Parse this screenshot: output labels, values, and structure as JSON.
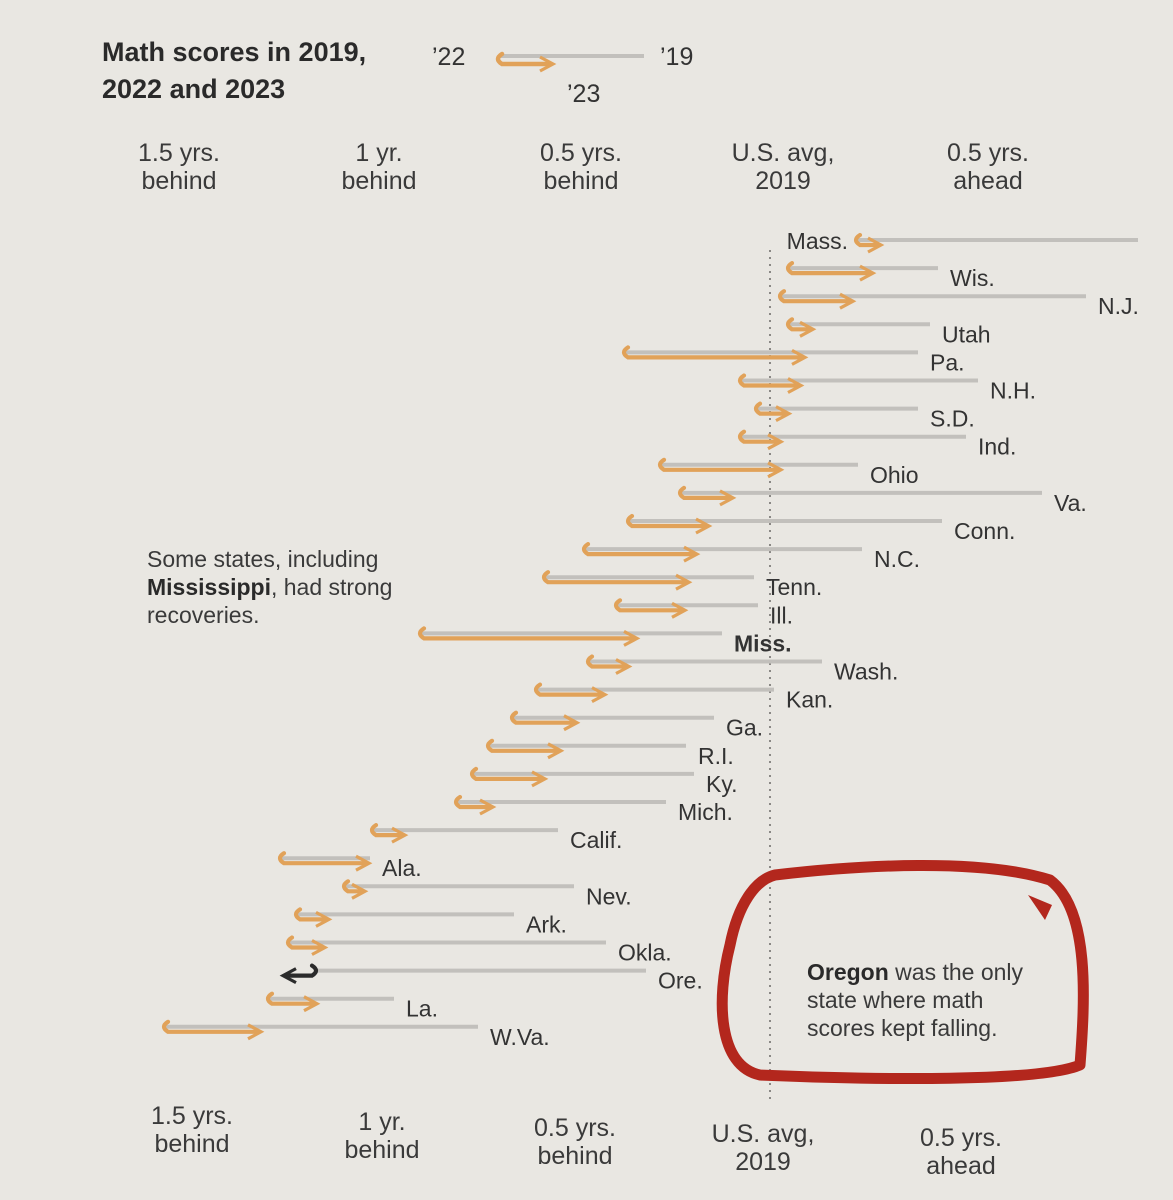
{
  "title_line1": "Math scores in 2019,",
  "title_line2": "2022 and 2023",
  "legend": {
    "label_2022": "’22",
    "label_2019": "’19",
    "label_2023": "’23"
  },
  "colors": {
    "orange": "#e1a259",
    "gray": "#c2c0bc",
    "annotation_circle": "#b3271d",
    "oregon_arrow": "#2b2b2b"
  },
  "top_axis": [
    {
      "line1": "1.5 yrs.",
      "line2": "behind"
    },
    {
      "line1": "1 yr.",
      "line2": "behind"
    },
    {
      "line1": "0.5 yrs.",
      "line2": "behind"
    },
    {
      "line1": "U.S. avg,",
      "line2": "2019"
    },
    {
      "line1": "0.5 yrs.",
      "line2": "ahead"
    }
  ],
  "bottom_axis": [
    {
      "line1": "1.5 yrs.",
      "line2": "behind"
    },
    {
      "line1": "1 yr.",
      "line2": "behind"
    },
    {
      "line1": "0.5 yrs.",
      "line2": "behind"
    },
    {
      "line1": "U.S. avg,",
      "line2": "2019"
    },
    {
      "line1": "0.5 yrs.",
      "line2": "ahead"
    }
  ],
  "note_mississippi": {
    "pre": "Some states, including",
    "bold": "Mississippi",
    "post": ", had strong",
    "last": "recoveries."
  },
  "note_oregon": {
    "bold": "Oregon",
    "rest1": " was the only",
    "line2": "state where math",
    "line3": "scores kept falling."
  },
  "chart_data": {
    "type": "arrow-range",
    "unit": "years relative to U.S. average 2019",
    "x_range": [
      -1.5,
      0.95
    ],
    "series": [
      {
        "name": "’19"
      },
      {
        "name": "’22"
      },
      {
        "name": "’23"
      }
    ],
    "states": [
      {
        "name": "Mass.",
        "y2019": 0.92,
        "y2022": 0.22,
        "y2023": 0.27,
        "label_side": "left"
      },
      {
        "name": "Wis.",
        "y2019": 0.42,
        "y2022": 0.05,
        "y2023": 0.25,
        "label_side": "right"
      },
      {
        "name": "N.J.",
        "y2019": 0.79,
        "y2022": 0.03,
        "y2023": 0.2,
        "label_side": "right"
      },
      {
        "name": "Utah",
        "y2019": 0.4,
        "y2022": 0.05,
        "y2023": 0.1,
        "label_side": "right"
      },
      {
        "name": "Pa.",
        "y2019": 0.37,
        "y2022": -0.36,
        "y2023": 0.08,
        "label_side": "right"
      },
      {
        "name": "N.H.",
        "y2019": 0.52,
        "y2022": -0.07,
        "y2023": 0.07,
        "label_side": "right"
      },
      {
        "name": "S.D.",
        "y2019": 0.37,
        "y2022": -0.03,
        "y2023": 0.04,
        "label_side": "right"
      },
      {
        "name": "Ind.",
        "y2019": 0.49,
        "y2022": -0.07,
        "y2023": 0.02,
        "label_side": "right"
      },
      {
        "name": "Ohio",
        "y2019": 0.22,
        "y2022": -0.27,
        "y2023": 0.02,
        "label_side": "right"
      },
      {
        "name": "Va.",
        "y2019": 0.68,
        "y2022": -0.22,
        "y2023": -0.1,
        "label_side": "right"
      },
      {
        "name": "Conn.",
        "y2019": 0.43,
        "y2022": -0.35,
        "y2023": -0.16,
        "label_side": "right"
      },
      {
        "name": "N.C.",
        "y2019": 0.23,
        "y2022": -0.46,
        "y2023": -0.19,
        "label_side": "right"
      },
      {
        "name": "Tenn.",
        "y2019": -0.04,
        "y2022": -0.56,
        "y2023": -0.21,
        "label_side": "right"
      },
      {
        "name": "Ill.",
        "y2019": -0.03,
        "y2022": -0.38,
        "y2023": -0.22,
        "label_side": "right"
      },
      {
        "name": "Miss.",
        "y2019": -0.12,
        "y2022": -0.87,
        "y2023": -0.34,
        "label_side": "right"
      },
      {
        "name": "Wash.",
        "y2019": 0.13,
        "y2022": -0.45,
        "y2023": -0.36,
        "label_side": "right"
      },
      {
        "name": "Kan.",
        "y2019": 0.01,
        "y2022": -0.58,
        "y2023": -0.42,
        "label_side": "right"
      },
      {
        "name": "Ga.",
        "y2019": -0.14,
        "y2022": -0.64,
        "y2023": -0.49,
        "label_side": "right"
      },
      {
        "name": "R.I.",
        "y2019": -0.21,
        "y2022": -0.7,
        "y2023": -0.53,
        "label_side": "right"
      },
      {
        "name": "Ky.",
        "y2019": -0.19,
        "y2022": -0.74,
        "y2023": -0.57,
        "label_side": "right"
      },
      {
        "name": "Mich.",
        "y2019": -0.26,
        "y2022": -0.78,
        "y2023": -0.7,
        "label_side": "right"
      },
      {
        "name": "Calif.",
        "y2019": -0.53,
        "y2022": -0.99,
        "y2023": -0.92,
        "label_side": "right"
      },
      {
        "name": "Ala.",
        "y2019": -1.0,
        "y2022": -1.22,
        "y2023": -1.01,
        "label_side": "right"
      },
      {
        "name": "Nev.",
        "y2019": -0.49,
        "y2022": -1.06,
        "y2023": -1.02,
        "label_side": "right"
      },
      {
        "name": "Ark.",
        "y2019": -0.64,
        "y2022": -1.18,
        "y2023": -1.11,
        "label_side": "right"
      },
      {
        "name": "Okla.",
        "y2019": -0.41,
        "y2022": -1.2,
        "y2023": -1.12,
        "label_side": "right"
      },
      {
        "name": "Ore.",
        "y2019": -0.31,
        "y2022": -1.14,
        "y2023": -1.21,
        "label_side": "right"
      },
      {
        "name": "La.",
        "y2019": -0.94,
        "y2022": -1.25,
        "y2023": -1.14,
        "label_side": "right"
      },
      {
        "name": "W.Va.",
        "y2019": -0.73,
        "y2022": -1.51,
        "y2023": -1.28,
        "label_side": "right"
      }
    ]
  }
}
